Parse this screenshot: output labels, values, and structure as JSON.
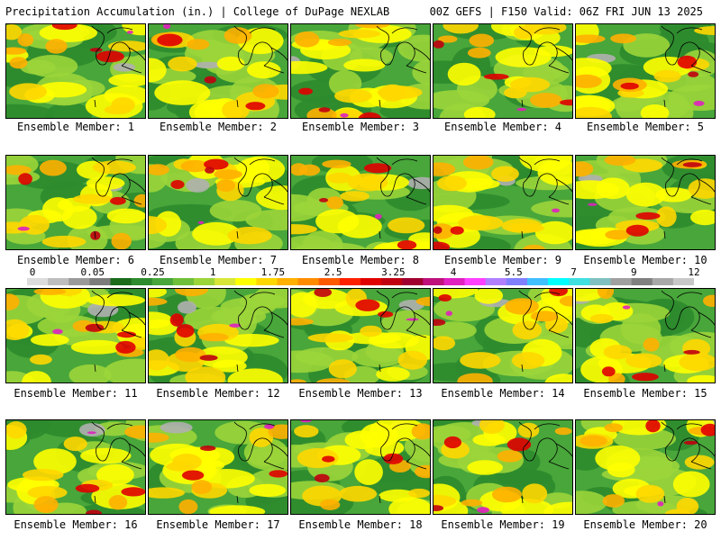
{
  "header": {
    "left": "Precipitation Accumulation (in.) | College of DuPage NEXLAB",
    "right": "00Z GEFS | F150 Valid: 06Z FRI JUN 13 2025"
  },
  "colorbar": {
    "tick_labels": [
      "0",
      "0.05",
      "0.25",
      "1",
      "1.75",
      "2.5",
      "3.25",
      "4",
      "5.5",
      "7",
      "9",
      "12"
    ],
    "colors": [
      "#dcdcdc",
      "#bebebe",
      "#9a9a9a",
      "#7c7c7c",
      "#1b6b1b",
      "#2e8b2e",
      "#48a63a",
      "#6fbf3a",
      "#9bd53a",
      "#d8e63a",
      "#ffff00",
      "#ffd700",
      "#ffb000",
      "#ff8c00",
      "#ff5a00",
      "#ff2000",
      "#e00000",
      "#c00010",
      "#a00030",
      "#c0107c",
      "#e020c0",
      "#ff40ff",
      "#b080ff",
      "#8080ff",
      "#40c0ff",
      "#00ffff",
      "#40e0e0",
      "#80c0c0",
      "#a0a0a0",
      "#808080",
      "#a8a8a8",
      "#c8c8c8"
    ]
  },
  "panels": [
    {
      "label": "Ensemble Member: 1"
    },
    {
      "label": "Ensemble Member: 2"
    },
    {
      "label": "Ensemble Member: 3"
    },
    {
      "label": "Ensemble Member: 4"
    },
    {
      "label": "Ensemble Member: 5"
    },
    {
      "label": "Ensemble Member: 6"
    },
    {
      "label": "Ensemble Member: 7"
    },
    {
      "label": "Ensemble Member: 8"
    },
    {
      "label": "Ensemble Member: 9"
    },
    {
      "label": "Ensemble Member: 10"
    },
    {
      "label": "Ensemble Member: 11"
    },
    {
      "label": "Ensemble Member: 12"
    },
    {
      "label": "Ensemble Member: 13"
    },
    {
      "label": "Ensemble Member: 14"
    },
    {
      "label": "Ensemble Member: 15"
    },
    {
      "label": "Ensemble Member: 16"
    },
    {
      "label": "Ensemble Member: 17"
    },
    {
      "label": "Ensemble Member: 18"
    },
    {
      "label": "Ensemble Member: 19"
    },
    {
      "label": "Ensemble Member: 20"
    }
  ],
  "map_colors": {
    "base": "#48a63a",
    "dark_green": "#2e8b2e",
    "light_green": "#9bd53a",
    "yellow": "#ffff00",
    "gold": "#ffd700",
    "orange": "#ffb000",
    "red": "#e00000",
    "crimson": "#c00010",
    "magenta": "#e020c0",
    "cyan": "#40e0ff",
    "gray": "#b0b0b0"
  }
}
